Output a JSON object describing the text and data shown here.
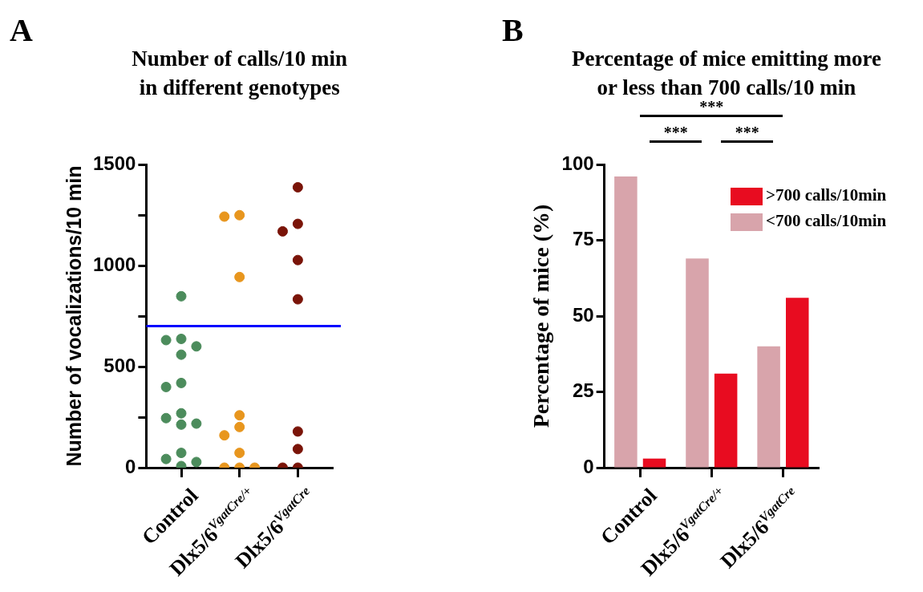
{
  "chart_data": [
    {
      "type": "scatter",
      "title": "Number of calls/10 min in different genotypes",
      "ylabel": "Number of vocalizations/10 min",
      "categories": [
        "Control",
        "Dlx5/6$^{VgatCre/+}$",
        "Dlx5/6$^{VgatCre}$"
      ],
      "series": [
        {
          "color": "#4c8c5c",
          "x": [
            "Control",
            "Control",
            "Control",
            "Control",
            "Control",
            "Control",
            "Control",
            "Control",
            "Control",
            "Control",
            "Control",
            "Control",
            "Control",
            "Control",
            "Control"
          ],
          "values": [
            848,
            637,
            631,
            600,
            559,
            419,
            399,
            269,
            245,
            218,
            213,
            73,
            43,
            28,
            8
          ]
        },
        {
          "color": "#e8961e",
          "x": [
            "Dlx5/6$^{VgatCre/+}$",
            "Dlx5/6$^{VgatCre/+}$",
            "Dlx5/6$^{VgatCre/+}$",
            "Dlx5/6$^{VgatCre/+}$",
            "Dlx5/6$^{VgatCre/+}$",
            "Dlx5/6$^{VgatCre/+}$",
            "Dlx5/6$^{VgatCre/+}$",
            "Dlx5/6$^{VgatCre/+}$",
            "Dlx5/6$^{VgatCre/+}$",
            "Dlx5/6$^{VgatCre/+}$"
          ],
          "values": [
            1249,
            1242,
            943,
            259,
            201,
            160,
            73,
            0,
            0,
            0
          ]
        },
        {
          "color": "#7a1408",
          "x": [
            "Dlx5/6$^{VgatCre}$",
            "Dlx5/6$^{VgatCre}$",
            "Dlx5/6$^{VgatCre}$",
            "Dlx5/6$^{VgatCre}$",
            "Dlx5/6$^{VgatCre}$",
            "Dlx5/6$^{VgatCre}$",
            "Dlx5/6$^{VgatCre}$",
            "Dlx5/6$^{VgatCre}$",
            "Dlx5/6$^{VgatCre}$"
          ],
          "values": [
            1387,
            1206,
            1169,
            1027,
            833,
            179,
            92,
            0,
            0
          ]
        }
      ],
      "ylim": [
        0,
        1500
      ],
      "yticks": [
        0,
        {
          "value": 250,
          "label": null
        },
        500,
        {
          "value": 750,
          "label": null
        },
        1000,
        {
          "value": 1250,
          "label": null
        },
        1500
      ],
      "ref_lines": [
        {
          "axis": "y",
          "value": 700,
          "color": "#0000ff"
        }
      ],
      "marker": "circle",
      "grid": false,
      "legend": false,
      "annotations": [
        "A"
      ]
    },
    {
      "type": "bar",
      "title": "Percentage of mice emitting more or less than 700 calls/10 min",
      "ylabel": "Percentage of mice (%)",
      "categories": [
        "Control",
        "Dlx5/6$^{VgatCre/+}$",
        "Dlx5/6$^{VgatCre}$"
      ],
      "series": [
        {
          "name": "<700 calls/10min",
          "color": "#d8a4ab",
          "values": [
            96,
            69,
            40
          ]
        },
        {
          "name": ">700 calls/10min",
          "color": "#e80c20",
          "values": [
            3,
            31,
            56
          ]
        }
      ],
      "ylim": [
        0,
        100
      ],
      "yticks": [
        0,
        25,
        50,
        75,
        100
      ],
      "grid": false,
      "legend": "top right",
      "annotations": [
        "B",
        "***",
        "***",
        "***"
      ]
    }
  ]
}
